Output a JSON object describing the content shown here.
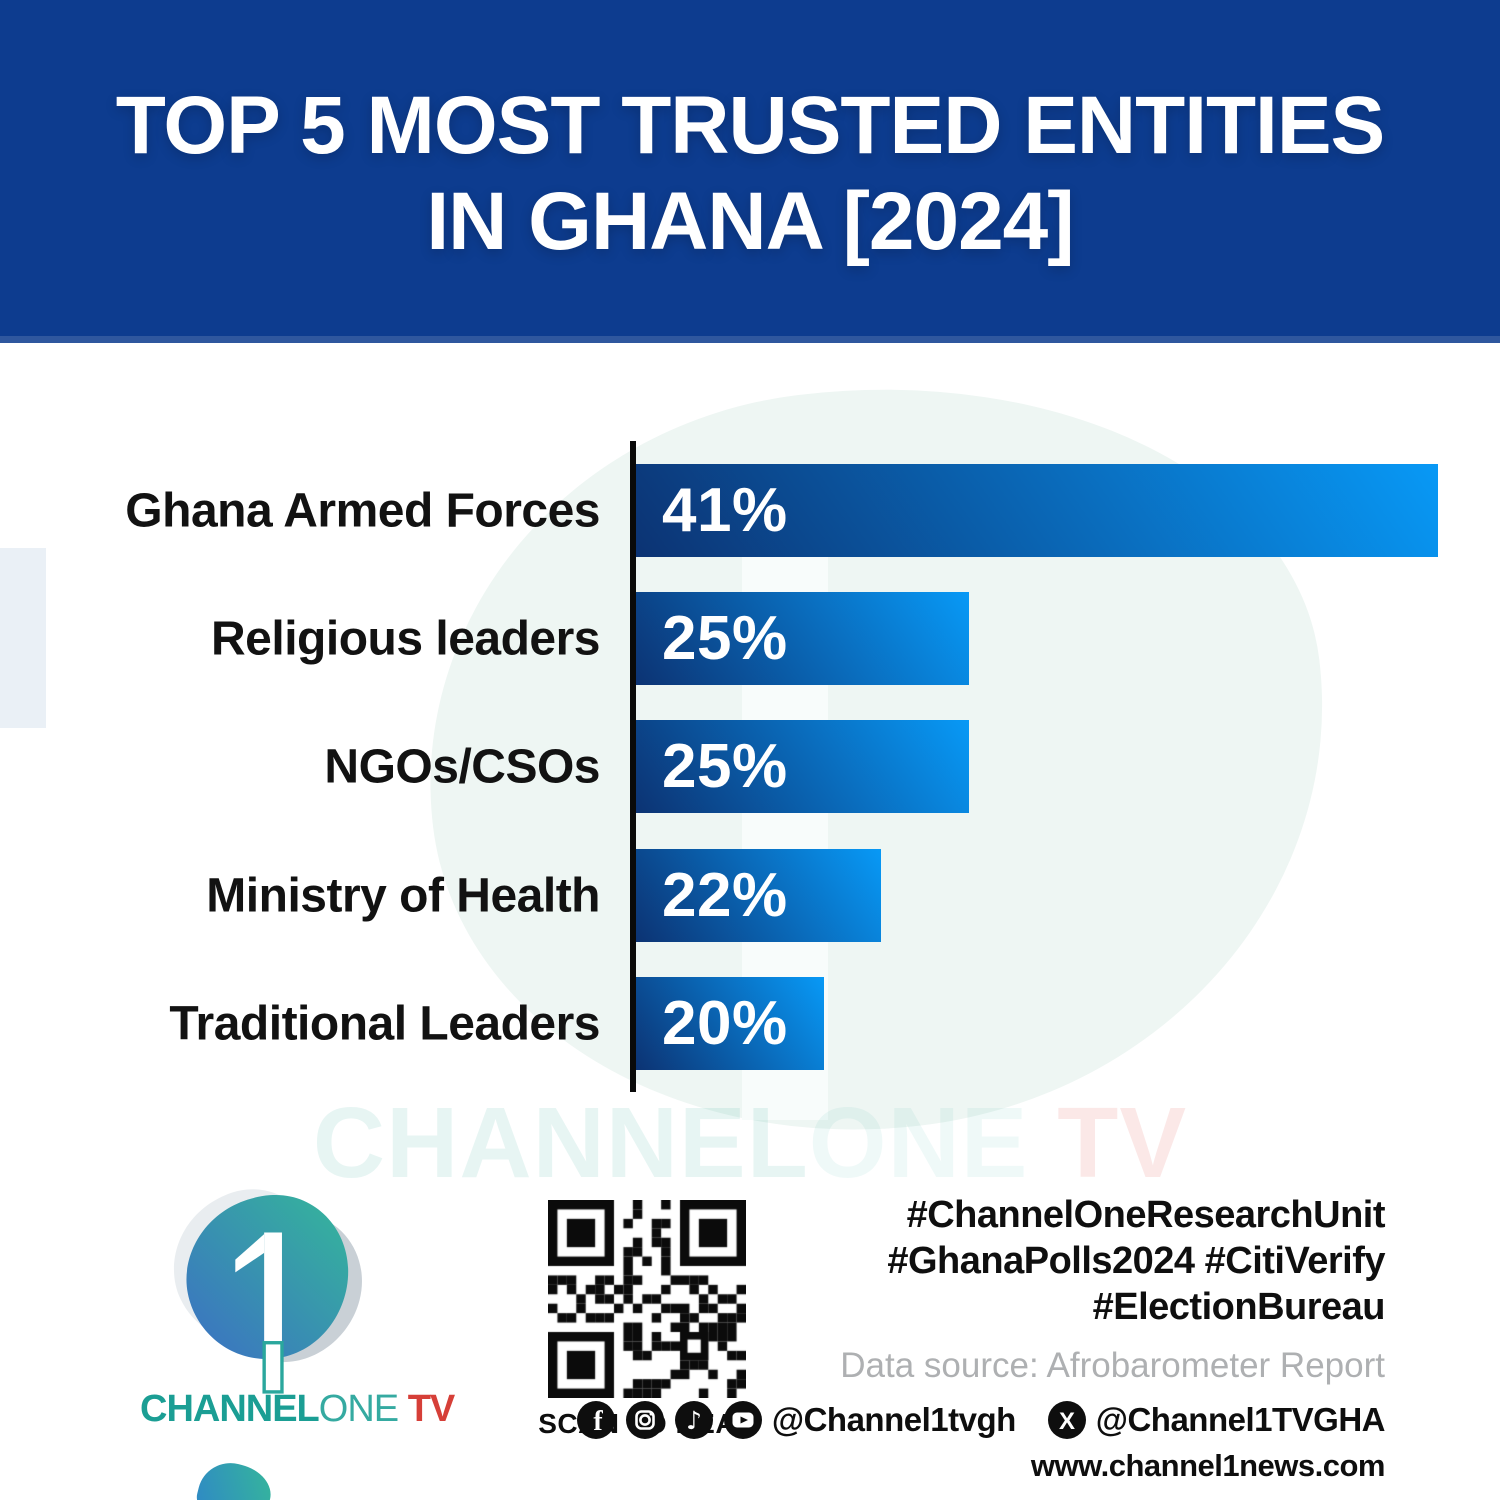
{
  "header": {
    "title_line1": "TOP 5 MOST TRUSTED ENTITIES",
    "title_line2": "IN GHANA [2024]",
    "background_color": "#0d3c8f"
  },
  "chart_data": {
    "type": "bar",
    "orientation": "horizontal",
    "title": "TOP 5 MOST TRUSTED ENTITIES IN GHANA [2024]",
    "categories": [
      "Ghana Armed Forces",
      "Religious leaders",
      "NGOs/CSOs",
      "Ministry of Health",
      "Traditional Leaders"
    ],
    "values": [
      41,
      25,
      25,
      22,
      20
    ],
    "value_suffix": "%",
    "value_label_position": "inside-left",
    "xlim": [
      0,
      41
    ],
    "grid": false,
    "legend": false,
    "axis_color": "#0a0a0a",
    "bar_gradient": [
      "#0c3373",
      "#0899f6"
    ],
    "bar_relative_widths": [
      1.0,
      0.415,
      0.415,
      0.305,
      0.235
    ]
  },
  "watermark": {
    "part1": "CHANNEL",
    "part2": "ONE",
    "part3": " TV"
  },
  "footer": {
    "brand": {
      "part1": "CHANNEL",
      "part2": "ONE",
      "part3": " TV",
      "numeral": "1"
    },
    "qr_caption": "SCAN TO READ",
    "hashtags": [
      "#ChannelOneResearchUnit",
      "#GhanaPolls2024 #CitiVerify",
      "#ElectionBureau"
    ],
    "data_source": "Data source: Afrobarometer Report",
    "social_icons": [
      "facebook",
      "instagram",
      "tiktok",
      "youtube"
    ],
    "handle_main": "@Channel1tvgh",
    "x_icon": "x-twitter",
    "handle_x": "@Channel1TVGHA",
    "website": "www.channel1news.com"
  },
  "colors": {
    "header_blue": "#0d3c8f",
    "bar_dark": "#0c3373",
    "bar_bright": "#0899f6",
    "brand_teal": "#1b9e94",
    "brand_red": "#d63f38",
    "source_gray": "#aeb0b2"
  }
}
